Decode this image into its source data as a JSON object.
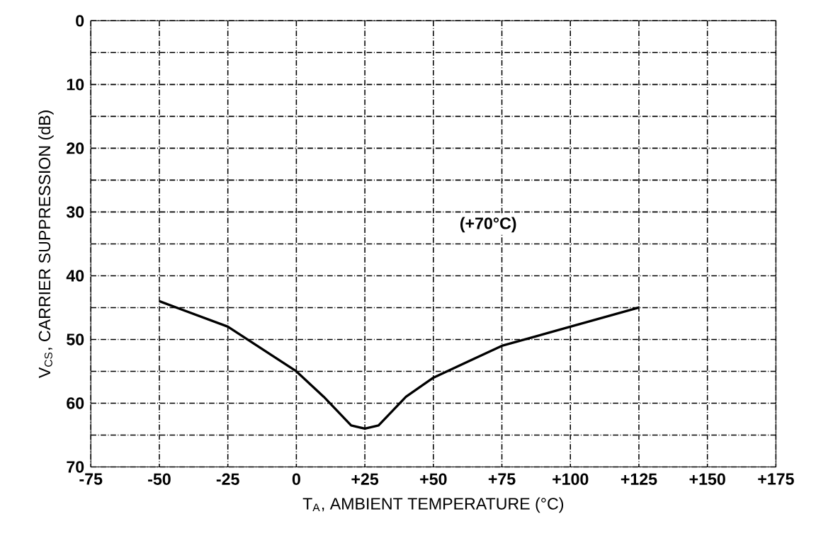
{
  "chart_data": {
    "type": "line",
    "xlabel": "T$_{A}$, AMBIENT TEMPERATURE (°C)",
    "ylabel": "V$_{CS}$, CARRIER SUPPRESSION (dB)",
    "annotations": [
      {
        "text": "(+70°C)",
        "x": 70,
        "y": 32
      }
    ],
    "x": [
      -50,
      -25,
      0,
      10,
      20,
      25,
      30,
      40,
      50,
      75,
      100,
      125
    ],
    "series": [
      {
        "color": "#000000",
        "values": [
          44,
          48,
          55,
          59,
          63.5,
          64,
          63.5,
          59,
          56,
          51,
          48,
          45
        ]
      }
    ],
    "xlim": [
      -75,
      175
    ],
    "xticks": [
      -75,
      -50,
      -25,
      0,
      {
        "value": 25,
        "label": "+25"
      },
      {
        "value": 50,
        "label": "+50"
      },
      {
        "value": 75,
        "label": "+75"
      },
      {
        "value": 100,
        "label": "+100"
      },
      {
        "value": 125,
        "label": "+125"
      },
      {
        "value": 150,
        "label": "+150"
      },
      {
        "value": 175,
        "label": "+175"
      }
    ],
    "ylim": [
      70,
      0
    ],
    "yticks": [
      0,
      {
        "value": 5,
        "label": null
      },
      10,
      {
        "value": 15,
        "label": null
      },
      20,
      {
        "value": 25,
        "label": null
      },
      30,
      {
        "value": 35,
        "label": null
      },
      40,
      {
        "value": 45,
        "label": null
      },
      50,
      {
        "value": 55,
        "label": null
      },
      60,
      {
        "value": 65,
        "label": null
      },
      70
    ],
    "grid": true,
    "marker": "none",
    "line_style": "solid"
  }
}
